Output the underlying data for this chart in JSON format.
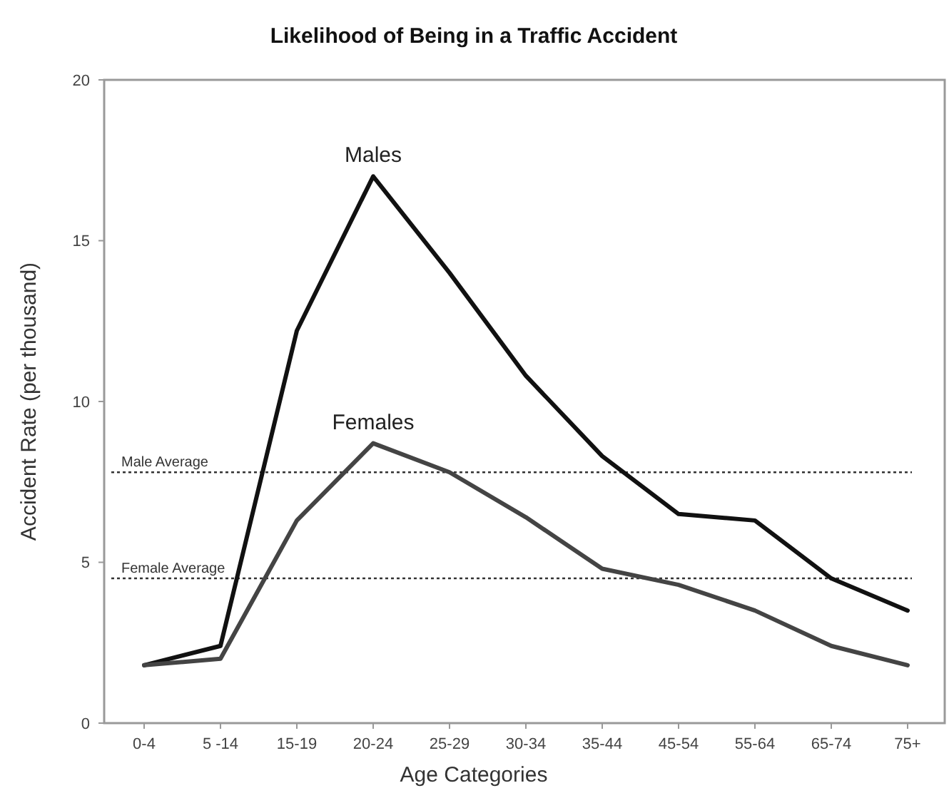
{
  "chart_data": {
    "type": "line",
    "title": "Likelihood of Being in a Traffic Accident",
    "xlabel": "Age Categories",
    "ylabel": "Accident Rate (per thousand)",
    "categories": [
      "0-4",
      "5 -14",
      "15-19",
      "20-24",
      "25-29",
      "30-34",
      "35-44",
      "45-54",
      "55-64",
      "65-74",
      "75+"
    ],
    "series": [
      {
        "name": "Males",
        "color": "#111111",
        "values": [
          1.8,
          2.4,
          12.2,
          17.0,
          14.0,
          10.8,
          8.3,
          6.5,
          6.3,
          4.5,
          3.5
        ]
      },
      {
        "name": "Females",
        "color": "#444444",
        "values": [
          1.8,
          2.0,
          6.3,
          8.7,
          7.8,
          6.4,
          4.8,
          4.3,
          3.5,
          2.4,
          1.8
        ]
      }
    ],
    "ylim": [
      0,
      20
    ],
    "yticks": [
      0,
      5,
      10,
      15,
      20
    ],
    "grid": false,
    "legend": false,
    "marker": "none",
    "line_style": "solid",
    "ref_lines": [
      {
        "axis": "y",
        "value": 7.8,
        "label": "Male Average",
        "color": "#333333",
        "line_style": "dotted"
      },
      {
        "axis": "y",
        "value": 4.5,
        "label": "Female Average",
        "color": "#333333",
        "line_style": "dotted"
      }
    ]
  }
}
